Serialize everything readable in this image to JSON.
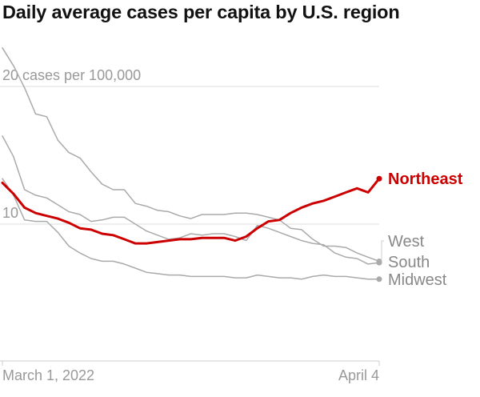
{
  "chart_data": {
    "type": "line",
    "title": "Daily average cases per capita by U.S. region",
    "y_annotation_unit": "cases per 100,000",
    "ylim": [
      0,
      22.8
    ],
    "yticks": [
      {
        "value": 20,
        "label": "20 cases per 100,000"
      },
      {
        "value": 10,
        "label": "10"
      }
    ],
    "x_start_label": "March 1, 2022",
    "x_end_label": "April 4",
    "x": [
      "2022-03-01",
      "2022-03-02",
      "2022-03-03",
      "2022-03-04",
      "2022-03-05",
      "2022-03-06",
      "2022-03-07",
      "2022-03-08",
      "2022-03-09",
      "2022-03-10",
      "2022-03-11",
      "2022-03-12",
      "2022-03-13",
      "2022-03-14",
      "2022-03-15",
      "2022-03-16",
      "2022-03-17",
      "2022-03-18",
      "2022-03-19",
      "2022-03-20",
      "2022-03-21",
      "2022-03-22",
      "2022-03-23",
      "2022-03-24",
      "2022-03-25",
      "2022-03-26",
      "2022-03-27",
      "2022-03-28",
      "2022-03-29",
      "2022-03-30",
      "2022-03-31",
      "2022-04-01",
      "2022-04-02",
      "2022-04-03",
      "2022-04-04"
    ],
    "series": [
      {
        "name": "West",
        "color": "#aaaaaa",
        "values": [
          22.8,
          21.5,
          19.9,
          18.0,
          17.8,
          16.1,
          15.2,
          14.8,
          13.8,
          12.9,
          12.5,
          12.5,
          11.5,
          11.3,
          11.0,
          10.9,
          10.6,
          10.4,
          10.7,
          10.7,
          10.7,
          10.8,
          10.8,
          10.7,
          10.5,
          10.3,
          9.7,
          9.6,
          8.9,
          8.4,
          8.4,
          8.3,
          7.9,
          7.6,
          7.3
        ]
      },
      {
        "name": "South",
        "color": "#aaaaaa",
        "values": [
          16.4,
          14.9,
          12.5,
          12.1,
          11.9,
          11.4,
          10.9,
          10.7,
          10.2,
          10.3,
          10.5,
          10.5,
          10.0,
          9.5,
          9.2,
          8.9,
          9.0,
          9.3,
          9.2,
          9.3,
          9.3,
          9.1,
          8.8,
          9.9,
          9.7,
          9.4,
          9.1,
          8.8,
          8.6,
          8.5,
          7.9,
          7.6,
          7.5,
          7.1,
          7.2
        ]
      },
      {
        "name": "Midwest",
        "color": "#aaaaaa",
        "values": [
          13.3,
          12.1,
          10.3,
          10.2,
          10.2,
          9.4,
          8.4,
          7.9,
          7.5,
          7.3,
          7.3,
          7.1,
          6.8,
          6.5,
          6.4,
          6.3,
          6.3,
          6.2,
          6.2,
          6.2,
          6.2,
          6.1,
          6.1,
          6.3,
          6.2,
          6.1,
          6.1,
          6.0,
          6.2,
          6.3,
          6.2,
          6.2,
          6.1,
          6.0,
          6.0
        ]
      },
      {
        "name": "Northeast",
        "color": "#cc0000",
        "values": [
          13.0,
          12.2,
          11.2,
          10.8,
          10.6,
          10.4,
          10.1,
          9.7,
          9.6,
          9.3,
          9.2,
          8.9,
          8.6,
          8.6,
          8.7,
          8.8,
          8.9,
          8.9,
          9.0,
          9.0,
          9.0,
          8.8,
          9.1,
          9.7,
          10.2,
          10.3,
          10.8,
          11.2,
          11.5,
          11.7,
          12.0,
          12.3,
          12.6,
          12.3,
          13.3
        ]
      }
    ],
    "highlight_series": "Northeast",
    "grid": true,
    "legend_placement": "right-end-labels"
  }
}
